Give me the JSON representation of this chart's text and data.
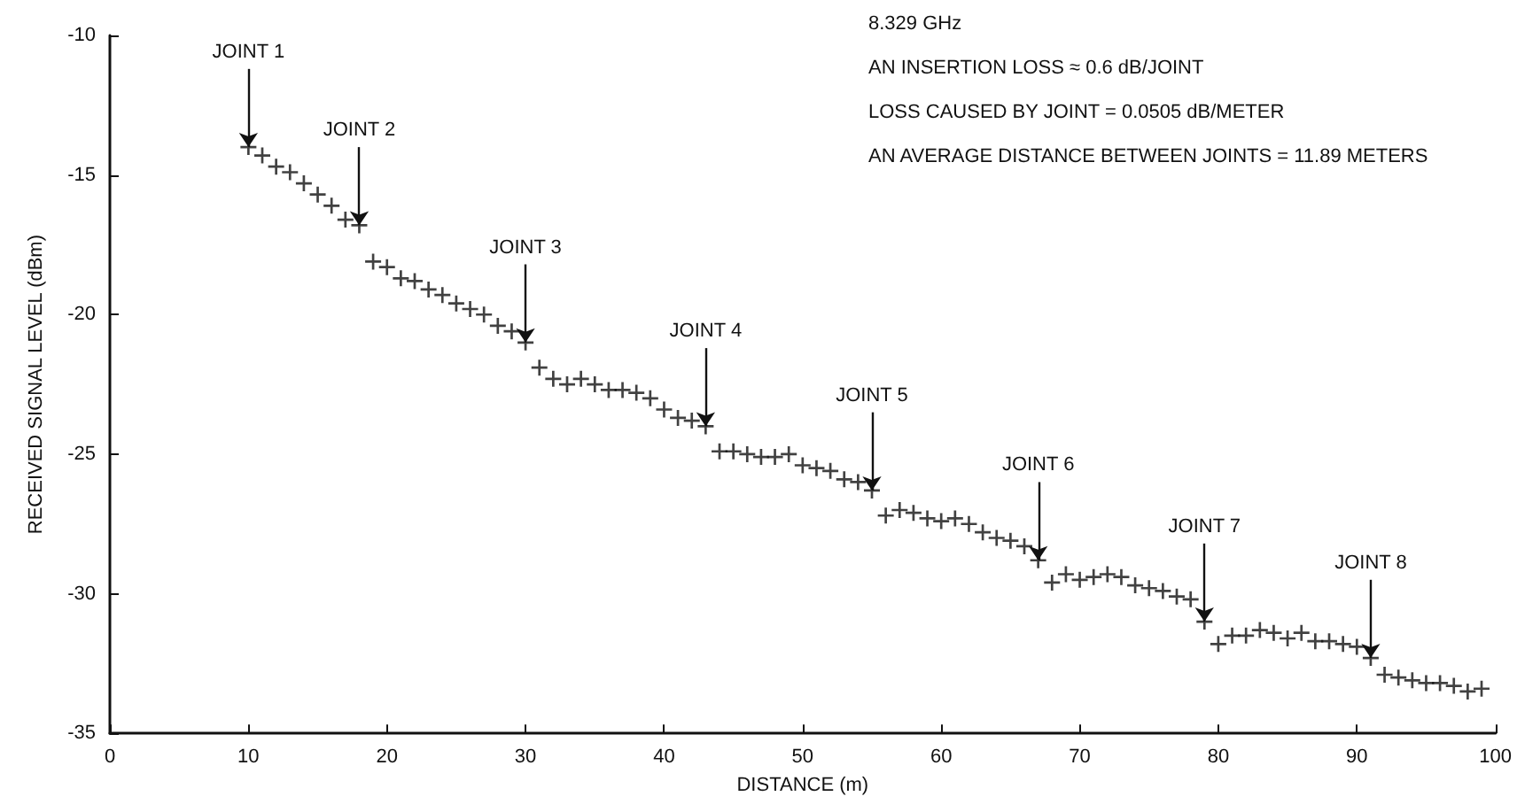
{
  "chart_data": {
    "type": "scatter",
    "xlabel": "DISTANCE (m)",
    "ylabel": "RECEIVED SIGNAL LEVEL (dBm)",
    "xlim": [
      0,
      100
    ],
    "xticks": [
      0,
      10,
      20,
      30,
      40,
      50,
      60,
      70,
      80,
      90,
      100
    ],
    "ylim": [
      -35,
      -10
    ],
    "yticks": [
      -35,
      -30,
      -25,
      -20,
      -15,
      -10
    ],
    "grid": false,
    "marker": "cross",
    "series": [
      {
        "color": "#111111",
        "x": [
          10,
          11,
          12,
          13,
          14,
          15,
          16,
          17,
          18,
          19,
          20,
          21,
          22,
          23,
          24,
          25,
          26,
          27,
          28,
          29,
          30,
          31,
          32,
          33,
          34,
          35,
          36,
          37,
          38,
          39,
          40,
          41,
          42,
          43,
          44,
          45,
          46,
          47,
          48,
          49,
          50,
          51,
          52,
          53,
          54,
          55,
          56,
          57,
          58,
          59,
          60,
          61,
          62,
          63,
          64,
          65,
          66,
          67,
          68,
          69,
          70,
          71,
          72,
          73,
          74,
          75,
          76,
          77,
          78,
          79,
          80,
          81,
          82,
          83,
          84,
          85,
          86,
          87,
          88,
          89,
          90,
          91,
          92,
          93,
          94,
          95,
          96,
          97,
          98,
          99
        ],
        "values": [
          -14.0,
          -14.3,
          -14.7,
          -14.9,
          -15.3,
          -15.7,
          -16.1,
          -16.6,
          -16.8,
          -18.1,
          -18.3,
          -18.7,
          -18.8,
          -19.1,
          -19.3,
          -19.6,
          -19.8,
          -20.0,
          -20.4,
          -20.6,
          -21.0,
          -21.9,
          -22.3,
          -22.5,
          -22.3,
          -22.5,
          -22.7,
          -22.7,
          -22.8,
          -23.0,
          -23.4,
          -23.7,
          -23.8,
          -24.0,
          -24.9,
          -24.9,
          -25.0,
          -25.1,
          -25.1,
          -25.0,
          -25.4,
          -25.5,
          -25.6,
          -25.9,
          -26.0,
          -26.3,
          -27.2,
          -27.0,
          -27.1,
          -27.3,
          -27.4,
          -27.3,
          -27.5,
          -27.8,
          -28.0,
          -28.1,
          -28.3,
          -28.8,
          -29.6,
          -29.3,
          -29.5,
          -29.4,
          -29.3,
          -29.4,
          -29.7,
          -29.8,
          -29.9,
          -30.1,
          -30.2,
          -31.0,
          -31.8,
          -31.5,
          -31.5,
          -31.3,
          -31.4,
          -31.6,
          -31.4,
          -31.7,
          -31.7,
          -31.8,
          -31.9,
          -32.3,
          -32.9,
          -33.0,
          -33.1,
          -33.2,
          -33.2,
          -33.3,
          -33.5,
          -33.4
        ]
      }
    ],
    "annotations": [
      {
        "text": "JOINT 1",
        "x": 10,
        "y": -14.0
      },
      {
        "text": "JOINT 2",
        "x": 18,
        "y": -16.8
      },
      {
        "text": "JOINT 3",
        "x": 30,
        "y": -21.0
      },
      {
        "text": "JOINT 4",
        "x": 43,
        "y": -24.0
      },
      {
        "text": "JOINT 5",
        "x": 55,
        "y": -26.3
      },
      {
        "text": "JOINT 6",
        "x": 67,
        "y": -28.8
      },
      {
        "text": "JOINT 7",
        "x": 79,
        "y": -31.0
      },
      {
        "text": "JOINT 8",
        "x": 91,
        "y": -32.3
      },
      "8.329 GHz",
      "AN INSERTION LOSS ≈ 0.6 dB/JOINT",
      "LOSS CAUSED BY JOINT = 0.0505 dB/METER",
      "AN AVERAGE DISTANCE BETWEEN JOINTS = 11.89 METERS"
    ]
  }
}
